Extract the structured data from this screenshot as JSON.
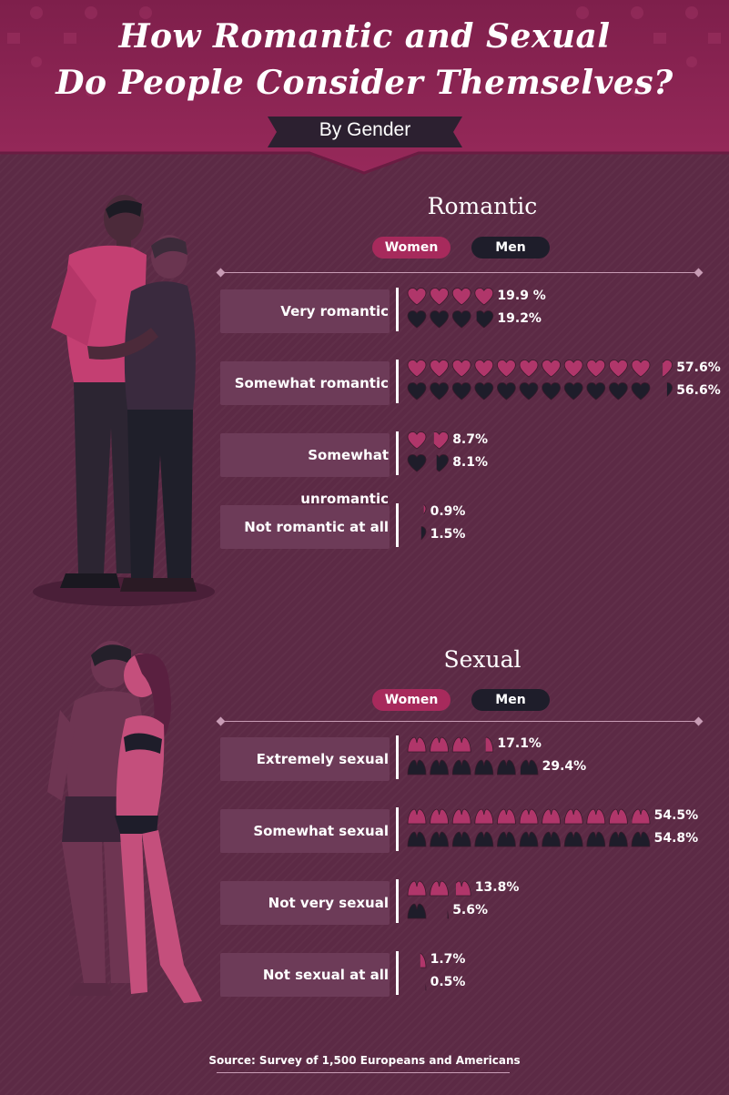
{
  "header": {
    "title_line1": "How Romantic and Sexual",
    "title_line2": "Do People Consider Themselves?",
    "subtitle": "By Gender"
  },
  "legend": {
    "women": "Women",
    "men": "Men"
  },
  "colors": {
    "background": "#5c2a45",
    "header": "#8c2454",
    "women": "#b0366a",
    "men": "#1e1d2a",
    "label_box": "#6d3b58"
  },
  "icons": {
    "romantic": "heart-icon",
    "sexual": "bra-icon"
  },
  "illustrations": [
    "kissing-male-couple-illustration",
    "kissing-heterosexual-couple-illustration"
  ],
  "chart_data": [
    {
      "type": "bar",
      "title": "Romantic",
      "icon": "heart-icon",
      "unit_per_icon": 5,
      "categories": [
        "Very romantic",
        "Somewhat romantic",
        "Somewhat unromantic",
        "Not romantic at all"
      ],
      "series": [
        {
          "name": "Women",
          "values": [
            19.9,
            57.6,
            8.7,
            0.9
          ],
          "labels": [
            "19.9 %",
            "57.6%",
            "8.7%",
            "0.9%"
          ]
        },
        {
          "name": "Men",
          "values": [
            19.2,
            56.6,
            8.1,
            1.5
          ],
          "labels": [
            "19.2%",
            "56.6%",
            "8.1%",
            "1.5%"
          ]
        }
      ]
    },
    {
      "type": "bar",
      "title": "Sexual",
      "icon": "bra-icon",
      "unit_per_icon": 5,
      "categories": [
        "Extremely sexual",
        "Somewhat sexual",
        "Not very sexual",
        "Not sexual at all"
      ],
      "series": [
        {
          "name": "Women",
          "values": [
            17.1,
            54.5,
            13.8,
            1.7
          ],
          "labels": [
            "17.1%",
            "54.5%",
            "13.8%",
            "1.7%"
          ]
        },
        {
          "name": "Men",
          "values": [
            29.4,
            54.8,
            5.6,
            0.5
          ],
          "labels": [
            "29.4%",
            "54.8%",
            "5.6%",
            "0.5%"
          ]
        }
      ]
    }
  ],
  "source": "Source: Survey of 1,500 Europeans and Americans"
}
